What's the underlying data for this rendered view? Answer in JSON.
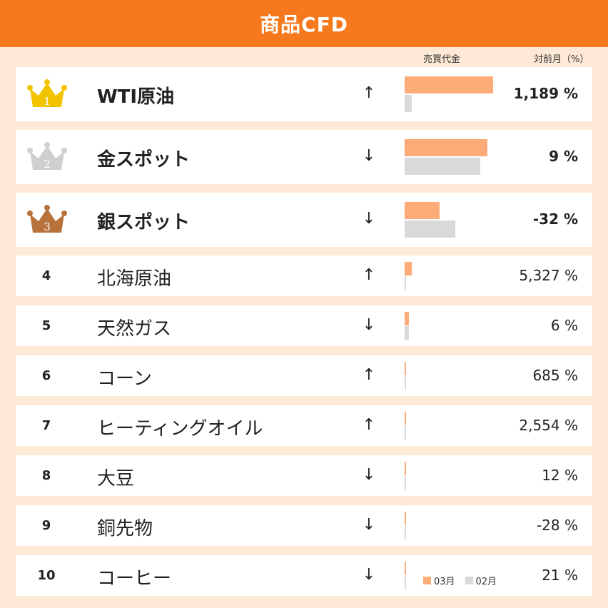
{
  "header": {
    "title": "商品CFD"
  },
  "columns": {
    "volume_label": "売買代金",
    "change_label": "対前月（%）"
  },
  "colors": {
    "header": "#f67a1d",
    "current_month": "#fdab78",
    "previous_month": "#d9d9d9",
    "gold": "#f2c400",
    "silver": "#cfcfcf",
    "bronze": "#b8733d"
  },
  "chart_data": {
    "type": "bar",
    "title": "商品CFD",
    "legend": {
      "placement": "bottom-right",
      "entries": [
        "03月",
        "02月"
      ]
    },
    "series": [
      {
        "name": "03月",
        "values": [
          124,
          116,
          49,
          10,
          6,
          2,
          2,
          1,
          1,
          1
        ]
      },
      {
        "name": "02月",
        "values": [
          10,
          106,
          71,
          1,
          6,
          1,
          1,
          1,
          1,
          1
        ]
      }
    ],
    "rows": [
      {
        "rank": "1",
        "name": "WTI原油",
        "arrow": "↑",
        "change": "1,189 %"
      },
      {
        "rank": "2",
        "name": "金スポット",
        "arrow": "↓",
        "change": "9 %"
      },
      {
        "rank": "3",
        "name": "銀スポット",
        "arrow": "↓",
        "change": "-32 %"
      },
      {
        "rank": "4",
        "name": "北海原油",
        "arrow": "↑",
        "change": "5,327 %"
      },
      {
        "rank": "5",
        "name": "天然ガス",
        "arrow": "↓",
        "change": "6 %"
      },
      {
        "rank": "6",
        "name": "コーン",
        "arrow": "↑",
        "change": "685 %"
      },
      {
        "rank": "7",
        "name": "ヒーティングオイル",
        "arrow": "↑",
        "change": "2,554 %"
      },
      {
        "rank": "8",
        "name": "大豆",
        "arrow": "↓",
        "change": "12 %"
      },
      {
        "rank": "9",
        "name": "銅先物",
        "arrow": "↓",
        "change": "-28 %"
      },
      {
        "rank": "10",
        "name": "コーヒー",
        "arrow": "↓",
        "change": "21 %"
      }
    ]
  }
}
